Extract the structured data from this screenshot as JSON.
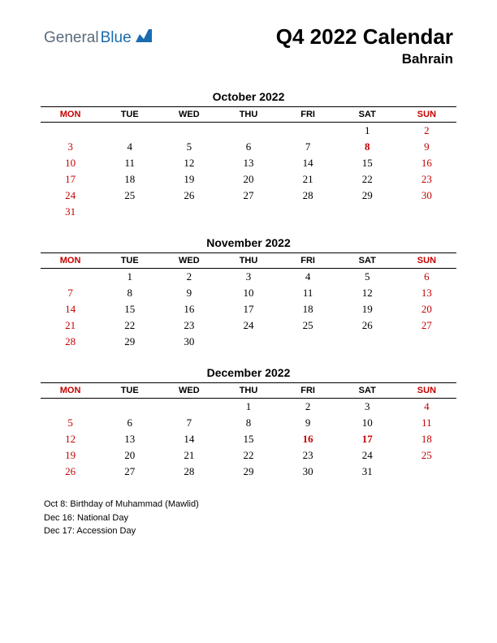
{
  "logo": {
    "text1": "General",
    "text2": "Blue",
    "icon_color": "#1a6bb0",
    "text1_color": "#5a6b7a"
  },
  "title": "Q4 2022 Calendar",
  "subtitle": "Bahrain",
  "day_headers": [
    "MON",
    "TUE",
    "WED",
    "THU",
    "FRI",
    "SAT",
    "SUN"
  ],
  "red_header_cols": [
    0,
    6
  ],
  "months": [
    {
      "name": "October 2022",
      "weeks": [
        [
          null,
          null,
          null,
          null,
          null,
          {
            "d": 1
          },
          {
            "d": 2,
            "red": true
          }
        ],
        [
          {
            "d": 3,
            "red": true
          },
          {
            "d": 4
          },
          {
            "d": 5
          },
          {
            "d": 6
          },
          {
            "d": 7
          },
          {
            "d": 8,
            "red": true,
            "bold": true
          },
          {
            "d": 9,
            "red": true
          }
        ],
        [
          {
            "d": 10,
            "red": true
          },
          {
            "d": 11
          },
          {
            "d": 12
          },
          {
            "d": 13
          },
          {
            "d": 14
          },
          {
            "d": 15
          },
          {
            "d": 16,
            "red": true
          }
        ],
        [
          {
            "d": 17,
            "red": true
          },
          {
            "d": 18
          },
          {
            "d": 19
          },
          {
            "d": 20
          },
          {
            "d": 21
          },
          {
            "d": 22
          },
          {
            "d": 23,
            "red": true
          }
        ],
        [
          {
            "d": 24,
            "red": true
          },
          {
            "d": 25
          },
          {
            "d": 26
          },
          {
            "d": 27
          },
          {
            "d": 28
          },
          {
            "d": 29
          },
          {
            "d": 30,
            "red": true
          }
        ],
        [
          {
            "d": 31,
            "red": true
          },
          null,
          null,
          null,
          null,
          null,
          null
        ]
      ]
    },
    {
      "name": "November 2022",
      "weeks": [
        [
          null,
          {
            "d": 1
          },
          {
            "d": 2
          },
          {
            "d": 3
          },
          {
            "d": 4
          },
          {
            "d": 5
          },
          {
            "d": 6,
            "red": true
          }
        ],
        [
          {
            "d": 7,
            "red": true
          },
          {
            "d": 8
          },
          {
            "d": 9
          },
          {
            "d": 10
          },
          {
            "d": 11
          },
          {
            "d": 12
          },
          {
            "d": 13,
            "red": true
          }
        ],
        [
          {
            "d": 14,
            "red": true
          },
          {
            "d": 15
          },
          {
            "d": 16
          },
          {
            "d": 17
          },
          {
            "d": 18
          },
          {
            "d": 19
          },
          {
            "d": 20,
            "red": true
          }
        ],
        [
          {
            "d": 21,
            "red": true
          },
          {
            "d": 22
          },
          {
            "d": 23
          },
          {
            "d": 24
          },
          {
            "d": 25
          },
          {
            "d": 26
          },
          {
            "d": 27,
            "red": true
          }
        ],
        [
          {
            "d": 28,
            "red": true
          },
          {
            "d": 29
          },
          {
            "d": 30
          },
          null,
          null,
          null,
          null
        ]
      ]
    },
    {
      "name": "December 2022",
      "weeks": [
        [
          null,
          null,
          null,
          {
            "d": 1
          },
          {
            "d": 2
          },
          {
            "d": 3
          },
          {
            "d": 4,
            "red": true
          }
        ],
        [
          {
            "d": 5,
            "red": true
          },
          {
            "d": 6
          },
          {
            "d": 7
          },
          {
            "d": 8
          },
          {
            "d": 9
          },
          {
            "d": 10
          },
          {
            "d": 11,
            "red": true
          }
        ],
        [
          {
            "d": 12,
            "red": true
          },
          {
            "d": 13
          },
          {
            "d": 14
          },
          {
            "d": 15
          },
          {
            "d": 16,
            "red": true,
            "bold": true
          },
          {
            "d": 17,
            "red": true,
            "bold": true
          },
          {
            "d": 18,
            "red": true
          }
        ],
        [
          {
            "d": 19,
            "red": true
          },
          {
            "d": 20
          },
          {
            "d": 21
          },
          {
            "d": 22
          },
          {
            "d": 23
          },
          {
            "d": 24
          },
          {
            "d": 25,
            "red": true
          }
        ],
        [
          {
            "d": 26,
            "red": true
          },
          {
            "d": 27
          },
          {
            "d": 28
          },
          {
            "d": 29
          },
          {
            "d": 30
          },
          {
            "d": 31
          },
          null
        ]
      ]
    }
  ],
  "holidays": [
    "Oct 8: Birthday of Muhammad (Mawlid)",
    "Dec 16: National Day",
    "Dec 17: Accession Day"
  ],
  "colors": {
    "red": "#c40000",
    "black": "#000000",
    "background": "#ffffff"
  }
}
